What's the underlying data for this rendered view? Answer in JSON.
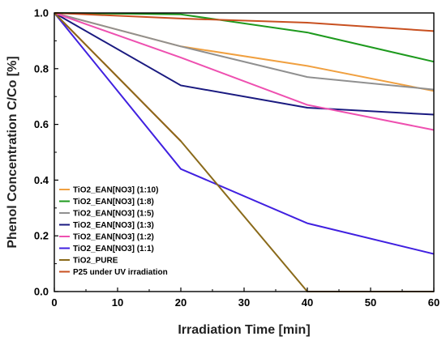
{
  "chart_data": {
    "type": "line",
    "title": "",
    "xlabel": "Irradiation Time [min]",
    "ylabel": "Phenol Concentration C/Co [%]",
    "xlim": [
      0,
      60
    ],
    "ylim": [
      0,
      1.0
    ],
    "xticks": [
      "0",
      "10",
      "20",
      "30",
      "40",
      "50",
      "60"
    ],
    "yticks": [
      "0.0",
      "0.2",
      "0.4",
      "0.6",
      "0.8",
      "1.0"
    ],
    "grid": false,
    "legend_position": "bottom-left",
    "series": [
      {
        "name": "TiO2_EAN[NO3] (1:10)",
        "color": "#f0a040",
        "x": [
          0,
          20,
          40,
          60
        ],
        "y": [
          1.0,
          0.88,
          0.81,
          0.72
        ]
      },
      {
        "name": "TiO2_EAN[NO3] (1:8)",
        "color": "#1e9a1e",
        "x": [
          0,
          20,
          40,
          60
        ],
        "y": [
          1.0,
          0.995,
          0.93,
          0.825
        ]
      },
      {
        "name": "TiO2_EAN[NO3] (1:5)",
        "color": "#909090",
        "x": [
          0,
          20,
          40,
          60
        ],
        "y": [
          1.0,
          0.88,
          0.77,
          0.725
        ]
      },
      {
        "name": "TiO2_EAN[NO3] (1:3)",
        "color": "#1a1a80",
        "x": [
          0,
          20,
          40,
          60
        ],
        "y": [
          1.0,
          0.74,
          0.66,
          0.635
        ]
      },
      {
        "name": "TiO2_EAN[NO3] (1:2)",
        "color": "#ee50b0",
        "x": [
          0,
          20,
          40,
          60
        ],
        "y": [
          1.0,
          0.84,
          0.67,
          0.58
        ]
      },
      {
        "name": "TiO2_EAN[NO3] (1:1)",
        "color": "#4020e0",
        "x": [
          0,
          20,
          40,
          60
        ],
        "y": [
          1.0,
          0.44,
          0.245,
          0.135
        ]
      },
      {
        "name": "TiO2_PURE",
        "color": "#8a6a1a",
        "x": [
          0,
          20,
          40,
          60
        ],
        "y": [
          1.0,
          0.54,
          0.0,
          0.0
        ]
      },
      {
        "name": "P25 under UV irradiation",
        "color": "#c85020",
        "x": [
          0,
          20,
          40,
          60
        ],
        "y": [
          1.0,
          0.98,
          0.965,
          0.935
        ]
      }
    ],
    "extra_segments": [
      {
        "color": "#ee3030",
        "x": [
          0,
          20
        ],
        "y": [
          1.0,
          0.54
        ]
      }
    ]
  }
}
